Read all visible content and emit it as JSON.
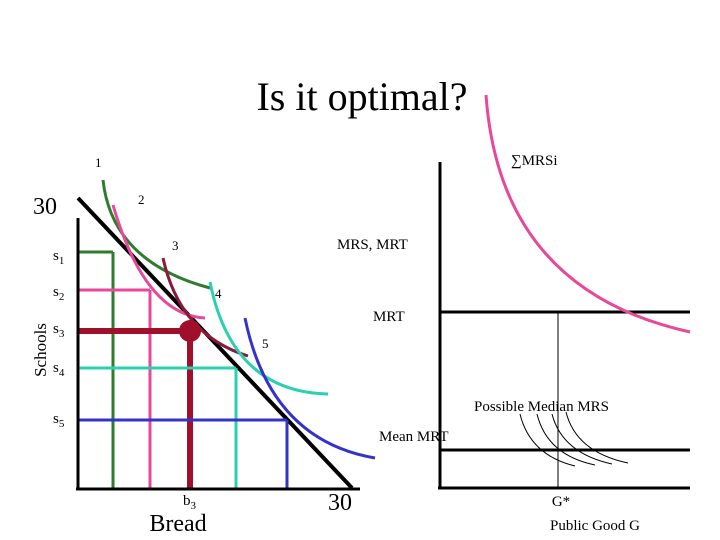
{
  "title": "Is it optimal?",
  "left_chart": {
    "y_axis_label": "Schools",
    "x_axis_label": "Bread",
    "y_max_label": "30",
    "x_max_label": "30",
    "y_ticks": [
      {
        "base": "s",
        "sub": "1"
      },
      {
        "base": "s",
        "sub": "2"
      },
      {
        "base": "s",
        "sub": "3"
      },
      {
        "base": "s",
        "sub": "4"
      },
      {
        "base": "s",
        "sub": "5"
      }
    ],
    "x_tick": {
      "base": "b",
      "sub": "3"
    },
    "curve_labels": [
      "1",
      "2",
      "3",
      "4",
      "5"
    ],
    "mrs_mrt_label": "MRS, MRT",
    "curve_colors": [
      "#2e7d2e",
      "#e8489a",
      "#8b1a3a",
      "#2ad0b0",
      "#3333cc"
    ],
    "budget_line_color": "#000000",
    "highlight_color": "#a0102a"
  },
  "right_chart": {
    "sum_mrs_label": "∑MRSi",
    "mrt_label": "MRT",
    "possible_median_label": "Possible Median MRS",
    "mean_mrt_label": "Mean MRT",
    "x_tick_label": "G*",
    "x_axis_label": "Public Good G",
    "sum_mrs_color": "#e8489a"
  }
}
